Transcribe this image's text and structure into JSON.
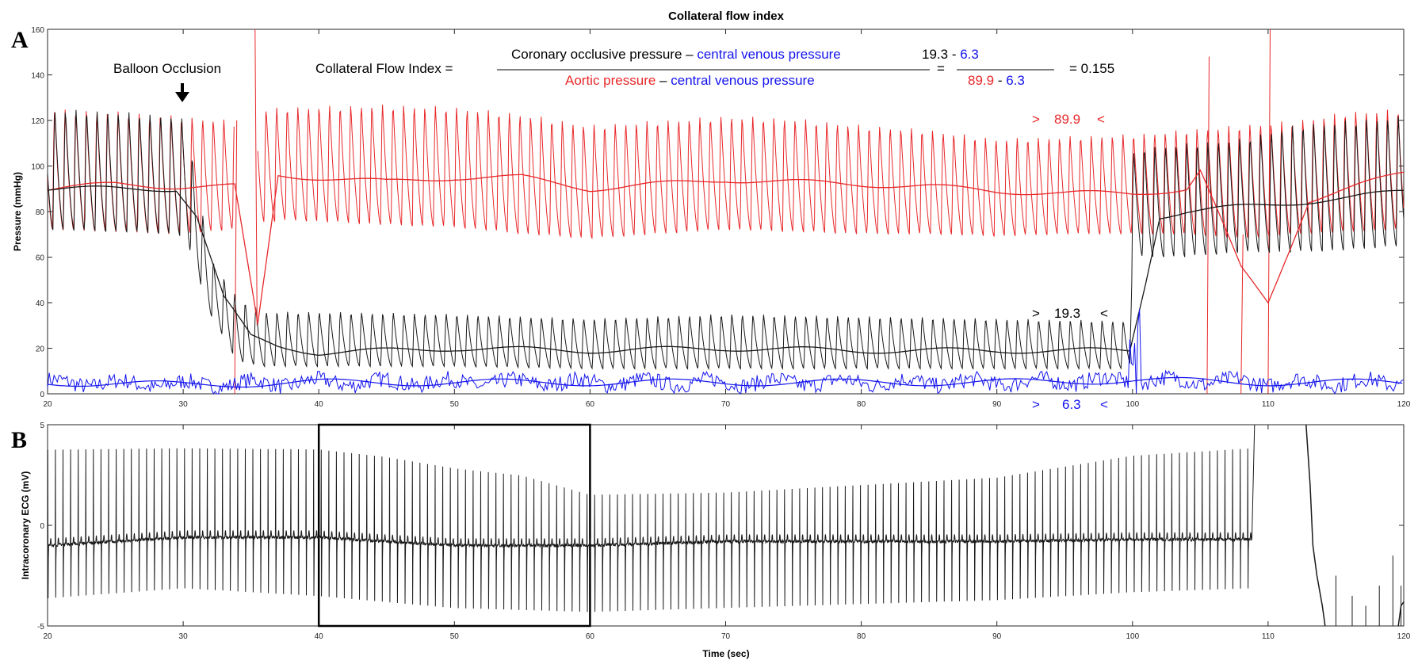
{
  "colors": {
    "aortic": "#e8282a",
    "coronary": "#1a1a1a",
    "venous": "#1414ee",
    "axis": "#262626"
  },
  "title": "Collateral flow index",
  "panels": {
    "a": "A",
    "b": "B"
  },
  "annotations": {
    "balloon": "Balloon Occlusion",
    "cfi_label": "Collateral Flow Index =",
    "num_part1": "Coronary occlusive pressure",
    "num_dash": " – ",
    "num_part2": "central venous pressure",
    "den_part1": "Aortic pressure",
    "den_dash": " – ",
    "den_part2": "central venous pressure",
    "equals": "=",
    "num_value_1": "19.3",
    "num_sep": " - ",
    "num_value_2": "6.3",
    "den_value_1": "89.9",
    "den_sep": " - ",
    "den_value_2": "6.3",
    "result": "= 0.155",
    "marker_aortic": {
      "left": ">",
      "value": "89.9",
      "right": "<"
    },
    "marker_coronary": {
      "left": ">",
      "value": "19.3",
      "right": "<"
    },
    "marker_venous": {
      "left": ">",
      "value": "6.3",
      "right": "<"
    }
  },
  "chart_data": [
    {
      "type": "line",
      "panel": "A",
      "title": "Collateral flow index",
      "xlabel": "",
      "ylabel": "Pressure (mmHg)",
      "xlim": [
        20,
        120
      ],
      "ylim": [
        0,
        160
      ],
      "xticks": [
        20,
        30,
        40,
        50,
        60,
        70,
        80,
        90,
        100,
        110,
        120
      ],
      "yticks": [
        0,
        20,
        40,
        60,
        80,
        100,
        120,
        140,
        160
      ],
      "grid": false,
      "series": [
        {
          "color": "aortic",
          "kind": "pulsatile",
          "x": [
            20,
            25,
            29.5,
            33.8,
            35.5,
            38,
            45,
            50,
            55,
            60,
            65,
            70,
            75,
            80,
            85,
            90,
            95,
            100,
            104,
            108,
            112,
            116,
            120
          ],
          "max": [
            125,
            124,
            122,
            120,
            125,
            126,
            127,
            126,
            123,
            118,
            120,
            122,
            121,
            118,
            116,
            112,
            113,
            114,
            116,
            118,
            120,
            124,
            125
          ],
          "min": [
            72,
            71,
            70,
            72,
            75,
            76,
            74,
            73,
            70,
            68,
            70,
            72,
            71,
            70,
            70,
            69,
            70,
            70,
            70,
            68,
            70,
            71,
            72
          ]
        },
        {
          "color": "aortic",
          "kind": "mean",
          "x": [
            20,
            25,
            29.5,
            33.8,
            35.5,
            37,
            45,
            50,
            55,
            60,
            65,
            70,
            75,
            80,
            85,
            90,
            95,
            100,
            104,
            105,
            108,
            110,
            113,
            117,
            120
          ],
          "y": [
            90,
            92,
            91,
            91,
            30,
            96,
            93,
            95,
            95,
            90,
            92,
            94,
            93,
            92,
            91,
            89,
            88,
            88,
            90,
            98,
            55,
            40,
            85,
            92,
            97
          ]
        },
        {
          "color": "coronary",
          "kind": "pulsatile",
          "x": [
            20,
            25,
            29.5,
            30.2,
            32,
            34,
            36,
            40,
            50,
            60,
            70,
            80,
            90,
            99.8,
            100,
            100.5,
            104,
            108,
            112,
            116,
            120
          ],
          "max": [
            125,
            124,
            122,
            120,
            60,
            42,
            36,
            36,
            35,
            33,
            35,
            34,
            33,
            32,
            105,
            108,
            110,
            112,
            118,
            120,
            122
          ],
          "min": [
            72,
            71,
            70,
            68,
            35,
            14,
            12,
            12,
            12,
            11,
            11,
            11,
            11,
            11,
            62,
            60,
            60,
            62,
            62,
            63,
            65
          ]
        },
        {
          "color": "coronary",
          "kind": "mean",
          "x": [
            20,
            25,
            29.5,
            31,
            33,
            35,
            37,
            40,
            50,
            60,
            70,
            80,
            90,
            99.8,
            101,
            102,
            104,
            108,
            112,
            116,
            120
          ],
          "y": [
            90,
            90,
            90,
            78,
            42,
            25,
            21,
            18,
            20,
            19,
            20,
            19,
            19,
            19,
            50,
            78,
            80,
            82,
            84,
            86,
            89
          ]
        },
        {
          "color": "venous",
          "kind": "noisy",
          "x": [
            20,
            30,
            40,
            50,
            60,
            70,
            80,
            90,
            100,
            110,
            120
          ],
          "y": [
            5,
            4,
            5,
            5,
            5,
            5,
            5,
            5,
            6,
            5,
            5
          ]
        }
      ],
      "balloon_occlusion_x": 29.8,
      "markers": {
        "aortic_mean": 89.9,
        "coronary_occlusive": 19.3,
        "central_venous": 6.3
      },
      "cfi": 0.155
    },
    {
      "type": "line",
      "panel": "B",
      "xlabel": "Time (sec)",
      "ylabel": "Intracoronary ECG (mV)",
      "xlim": [
        20,
        120
      ],
      "ylim": [
        -5,
        5
      ],
      "xticks": [
        20,
        30,
        40,
        50,
        60,
        70,
        80,
        90,
        100,
        110,
        120
      ],
      "yticks": [
        -5,
        0,
        5
      ],
      "grid": false,
      "highlight_box": {
        "x": [
          40,
          60
        ]
      },
      "series": [
        {
          "color": "coronary",
          "kind": "ecg",
          "x": [
            20,
            30,
            40,
            45,
            50,
            55,
            60,
            70,
            80,
            90,
            100,
            108.8
          ],
          "baseline": [
            -1.0,
            -0.6,
            -0.6,
            -0.8,
            -1.0,
            -1.0,
            -1.0,
            -0.8,
            -0.8,
            -0.8,
            -0.7,
            -0.7
          ],
          "r_peak": [
            5,
            5,
            5,
            4.6,
            4.0,
            3.6,
            2.5,
            2.6,
            3.0,
            3.4,
            4.6,
            5
          ],
          "s_trough": [
            -3.7,
            -3.2,
            -3.6,
            -3.9,
            -4.2,
            -4.3,
            -4.4,
            -4.2,
            -4.0,
            -3.8,
            -3.4,
            -3.2
          ]
        }
      ]
    }
  ]
}
